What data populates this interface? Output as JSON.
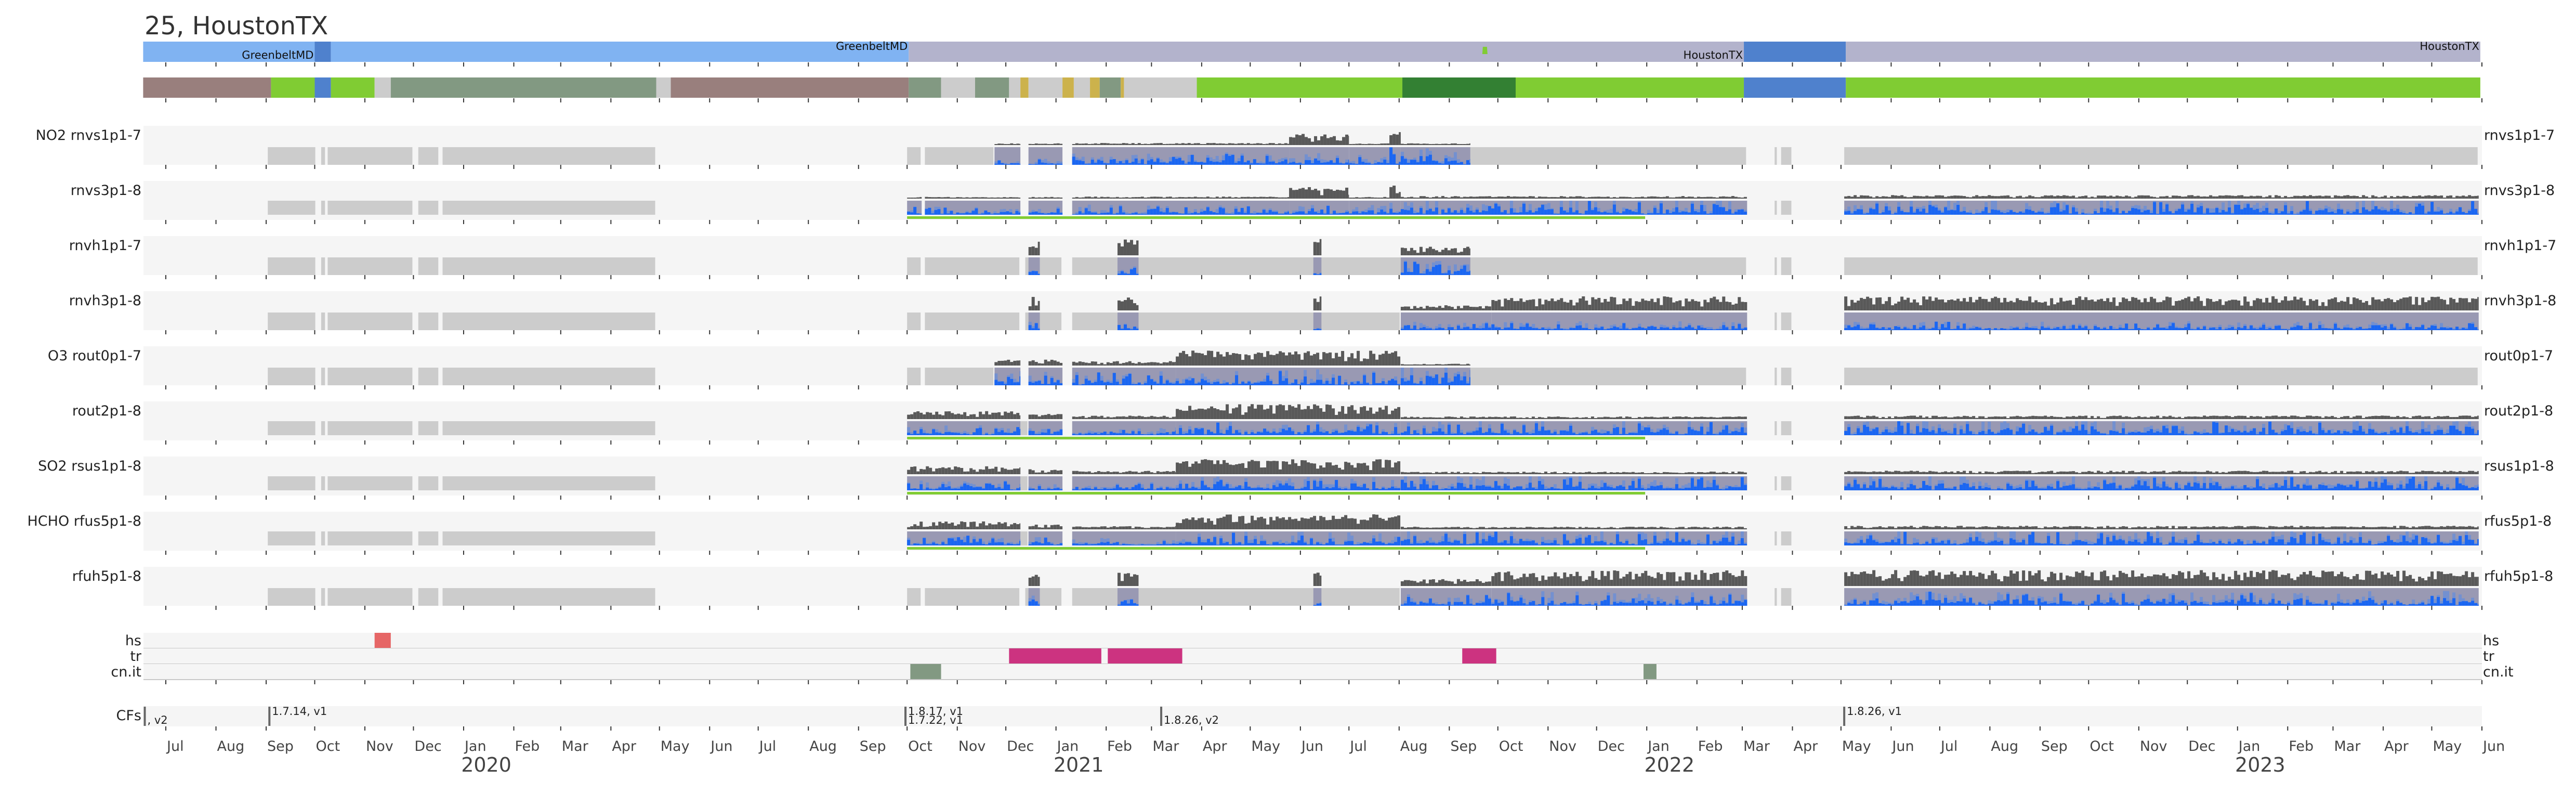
{
  "title": "25, HoustonTX",
  "colors": {
    "light_blue": "#80b3f2",
    "blue": "#4f81cd",
    "lavender": "#b3b3cc",
    "brown": "#997f7d",
    "green": "#80cc33",
    "dark_green": "#338033",
    "sage": "#829982",
    "gray": "#cccccc",
    "gold": "#ccb24c",
    "row_bg": "#f5f5f5",
    "nodata": "#cccccc",
    "data_bg": "#9999b3",
    "data_blue": "#1a66f2",
    "data_blue_light": "#7390d0",
    "data_dark": "#595959",
    "hs": "#e66666",
    "tr": "#cc3380",
    "cnit": "#829982",
    "cf_marker": "#666666"
  },
  "location_bar": {
    "segments": [
      {
        "start": "2019-06-17",
        "end": "2019-10-01",
        "color": "light_blue"
      },
      {
        "start": "2019-10-01",
        "end": "2019-10-11",
        "color": "blue"
      },
      {
        "start": "2019-10-11",
        "end": "2020-10-02",
        "color": "light_blue"
      },
      {
        "start": "2020-10-02",
        "end": "2022-03-02",
        "color": "lavender"
      },
      {
        "start": "2022-03-02",
        "end": "2022-05-04",
        "color": "blue"
      },
      {
        "start": "2022-05-04",
        "end": "2023-05-31",
        "color": "lavender"
      }
    ],
    "labels": [
      {
        "text": "GreenbeltMD",
        "at": "2019-10-01",
        "pos": "low"
      },
      {
        "text": "GreenbeltMD",
        "at": "2020-10-02",
        "pos": "high"
      },
      {
        "text": "HoustonTX",
        "at": "2022-03-02",
        "pos": "low"
      },
      {
        "text": "HoustonTX",
        "at": "2023-05-31",
        "pos": "high"
      }
    ],
    "marker": {
      "at": "2021-09-23",
      "color": "green"
    }
  },
  "status_bar": {
    "segments": [
      {
        "start": "2019-06-17",
        "end": "2019-09-04",
        "color": "brown"
      },
      {
        "start": "2019-09-04",
        "end": "2019-10-01",
        "color": "green"
      },
      {
        "start": "2019-10-01",
        "end": "2019-10-11",
        "color": "blue"
      },
      {
        "start": "2019-10-11",
        "end": "2019-11-07",
        "color": "green"
      },
      {
        "start": "2019-11-07",
        "end": "2019-11-17",
        "color": "gray"
      },
      {
        "start": "2019-11-17",
        "end": "2020-04-29",
        "color": "sage"
      },
      {
        "start": "2020-04-29",
        "end": "2020-05-08",
        "color": "gray"
      },
      {
        "start": "2020-05-08",
        "end": "2020-10-02",
        "color": "brown"
      },
      {
        "start": "2020-10-02",
        "end": "2020-10-22",
        "color": "sage"
      },
      {
        "start": "2020-10-22",
        "end": "2020-11-12",
        "color": "gray"
      },
      {
        "start": "2020-11-12",
        "end": "2020-12-03",
        "color": "sage"
      },
      {
        "start": "2020-12-03",
        "end": "2020-12-10",
        "color": "gray"
      },
      {
        "start": "2020-12-10",
        "end": "2020-12-15",
        "color": "gold"
      },
      {
        "start": "2020-12-15",
        "end": "2021-01-05",
        "color": "gray"
      },
      {
        "start": "2021-01-05",
        "end": "2021-01-12",
        "color": "gold"
      },
      {
        "start": "2021-01-12",
        "end": "2021-01-22",
        "color": "gray"
      },
      {
        "start": "2021-01-22",
        "end": "2021-01-28",
        "color": "gold"
      },
      {
        "start": "2021-01-28",
        "end": "2021-02-10",
        "color": "sage"
      },
      {
        "start": "2021-02-10",
        "end": "2021-02-12",
        "color": "gold"
      },
      {
        "start": "2021-02-12",
        "end": "2021-03-29",
        "color": "gray"
      },
      {
        "start": "2021-03-29",
        "end": "2021-08-03",
        "color": "green"
      },
      {
        "start": "2021-08-03",
        "end": "2021-10-12",
        "color": "dark_green"
      },
      {
        "start": "2021-10-12",
        "end": "2022-03-02",
        "color": "green"
      },
      {
        "start": "2022-03-02",
        "end": "2022-05-04",
        "color": "blue"
      },
      {
        "start": "2022-05-04",
        "end": "2023-05-31",
        "color": "green"
      }
    ]
  },
  "rows": [
    {
      "left_label": "NO2  rnvs1p1-7",
      "right_label": "rnvs1p1-7",
      "green_line": null,
      "nodata": [
        [
          "2019-09-02",
          "2019-10-02"
        ],
        [
          "2019-10-05",
          "2019-10-08"
        ],
        [
          "2019-10-09",
          "2019-12-01"
        ],
        [
          "2019-12-04",
          "2019-12-17"
        ],
        [
          "2019-12-19",
          "2020-04-29"
        ],
        [
          "2020-10-01",
          "2020-10-10"
        ],
        [
          "2020-10-12",
          "2020-11-24"
        ],
        [
          "2021-09-14",
          "2022-03-04"
        ],
        [
          "2022-03-21",
          "2022-03-23"
        ],
        [
          "2022-03-25",
          "2022-04-01"
        ],
        [
          "2022-05-03",
          "2023-05-30"
        ]
      ],
      "data": [
        [
          "2020-11-24",
          "2020-12-10",
          0.1,
          0.3
        ],
        [
          "2020-12-15",
          "2021-01-05",
          0.1,
          0.3
        ],
        [
          "2021-01-11",
          "2021-05-25",
          0.12,
          0.5
        ],
        [
          "2021-05-25",
          "2021-07-01",
          0.65,
          0.6
        ],
        [
          "2021-07-01",
          "2021-07-26",
          0.1,
          0.4
        ],
        [
          "2021-07-26",
          "2021-08-02",
          0.75,
          0.8
        ],
        [
          "2021-08-02",
          "2021-09-14",
          0.1,
          0.7
        ]
      ]
    },
    {
      "left_label": "rnvs3p1-8",
      "right_label": "rnvs3p1-8",
      "green_line": [
        "2020-10-01",
        "2021-12-31"
      ],
      "nodata": [
        [
          "2019-09-02",
          "2019-10-02"
        ],
        [
          "2019-10-05",
          "2019-10-08"
        ],
        [
          "2019-10-09",
          "2019-12-01"
        ],
        [
          "2019-12-04",
          "2019-12-17"
        ],
        [
          "2019-12-19",
          "2020-04-29"
        ],
        [
          "2022-03-21",
          "2022-03-23"
        ],
        [
          "2022-03-25",
          "2022-04-01"
        ]
      ],
      "data": [
        [
          "2020-10-01",
          "2020-10-10",
          0.1,
          0.4
        ],
        [
          "2020-10-12",
          "2020-12-10",
          0.1,
          0.4
        ],
        [
          "2020-12-15",
          "2021-01-05",
          0.1,
          0.4
        ],
        [
          "2021-01-11",
          "2021-05-25",
          0.12,
          0.5
        ],
        [
          "2021-05-25",
          "2021-07-01",
          0.65,
          0.6
        ],
        [
          "2021-07-01",
          "2021-07-26",
          0.1,
          0.5
        ],
        [
          "2021-07-26",
          "2021-08-02",
          0.75,
          0.8
        ],
        [
          "2021-08-02",
          "2022-03-04",
          0.15,
          0.8
        ],
        [
          "2022-05-03",
          "2023-05-30",
          0.2,
          0.8
        ]
      ]
    },
    {
      "left_label": "rnvh1p1-7",
      "right_label": "rnvh1p1-7",
      "green_line": null,
      "nodata": [
        [
          "2019-09-02",
          "2019-10-02"
        ],
        [
          "2019-10-05",
          "2019-10-08"
        ],
        [
          "2019-10-09",
          "2019-12-01"
        ],
        [
          "2019-12-04",
          "2019-12-17"
        ],
        [
          "2019-12-19",
          "2020-04-29"
        ],
        [
          "2020-10-01",
          "2020-10-10"
        ],
        [
          "2020-10-12",
          "2020-12-10"
        ],
        [
          "2020-12-13",
          "2021-01-05"
        ],
        [
          "2021-01-11",
          "2022-03-04"
        ],
        [
          "2022-03-21",
          "2022-03-23"
        ],
        [
          "2022-03-25",
          "2022-04-01"
        ],
        [
          "2022-05-03",
          "2023-05-30"
        ]
      ],
      "data": [
        [
          "2020-12-15",
          "2020-12-22",
          0.85,
          0.4
        ],
        [
          "2021-02-08",
          "2021-02-21",
          0.9,
          0.4
        ],
        [
          "2021-06-09",
          "2021-06-14",
          1.0,
          0.2
        ],
        [
          "2021-08-02",
          "2021-09-14",
          0.5,
          0.6
        ]
      ]
    },
    {
      "left_label": "rnvh3p1-8",
      "right_label": "rnvh3p1-8",
      "green_line": null,
      "nodata": [
        [
          "2019-09-02",
          "2019-10-02"
        ],
        [
          "2019-10-05",
          "2019-10-08"
        ],
        [
          "2019-10-09",
          "2019-12-01"
        ],
        [
          "2019-12-04",
          "2019-12-17"
        ],
        [
          "2019-12-19",
          "2020-04-29"
        ],
        [
          "2020-10-01",
          "2020-10-10"
        ],
        [
          "2020-10-12",
          "2020-12-10"
        ],
        [
          "2020-12-13",
          "2021-01-05"
        ],
        [
          "2021-01-11",
          "2021-08-02"
        ],
        [
          "2022-03-21",
          "2022-03-23"
        ],
        [
          "2022-03-25",
          "2022-04-01"
        ]
      ],
      "data": [
        [
          "2020-12-15",
          "2020-12-22",
          0.85,
          0.4
        ],
        [
          "2021-02-08",
          "2021-02-21",
          0.9,
          0.4
        ],
        [
          "2021-06-09",
          "2021-06-14",
          1.0,
          0.2
        ],
        [
          "2021-08-02",
          "2021-09-27",
          0.3,
          0.35
        ],
        [
          "2021-09-27",
          "2022-03-04",
          0.8,
          0.35
        ],
        [
          "2022-05-03",
          "2023-05-30",
          0.8,
          0.35
        ]
      ]
    },
    {
      "left_label": "O3  rout0p1-7",
      "right_label": "rout0p1-7",
      "green_line": null,
      "nodata": [
        [
          "2019-09-02",
          "2019-10-02"
        ],
        [
          "2019-10-05",
          "2019-10-08"
        ],
        [
          "2019-10-09",
          "2019-12-01"
        ],
        [
          "2019-12-04",
          "2019-12-17"
        ],
        [
          "2019-12-19",
          "2020-04-29"
        ],
        [
          "2020-10-01",
          "2020-10-10"
        ],
        [
          "2020-10-12",
          "2020-11-24"
        ],
        [
          "2021-09-14",
          "2022-03-04"
        ],
        [
          "2022-03-21",
          "2022-03-23"
        ],
        [
          "2022-03-25",
          "2022-04-01"
        ],
        [
          "2022-05-03",
          "2023-05-30"
        ]
      ],
      "data": [
        [
          "2020-11-24",
          "2020-12-10",
          0.35,
          0.6
        ],
        [
          "2020-12-15",
          "2021-01-05",
          0.35,
          0.6
        ],
        [
          "2021-01-11",
          "2021-03-16",
          0.25,
          0.6
        ],
        [
          "2021-03-16",
          "2021-08-02",
          0.85,
          0.7
        ],
        [
          "2021-08-02",
          "2021-09-14",
          0.1,
          0.9
        ]
      ]
    },
    {
      "left_label": "rout2p1-8",
      "right_label": "rout2p1-8",
      "green_line": [
        "2020-10-01",
        "2021-12-31"
      ],
      "nodata": [
        [
          "2019-09-02",
          "2019-10-02"
        ],
        [
          "2019-10-05",
          "2019-10-08"
        ],
        [
          "2019-10-09",
          "2019-12-01"
        ],
        [
          "2019-12-04",
          "2019-12-17"
        ],
        [
          "2019-12-19",
          "2020-04-29"
        ],
        [
          "2020-12-10",
          "2020-12-15"
        ],
        [
          "2022-03-21",
          "2022-03-23"
        ],
        [
          "2022-03-25",
          "2022-04-01"
        ]
      ],
      "data": [
        [
          "2020-10-01",
          "2020-12-10",
          0.45,
          0.5
        ],
        [
          "2020-12-15",
          "2021-01-05",
          0.3,
          0.4
        ],
        [
          "2021-01-11",
          "2021-03-16",
          0.2,
          0.4
        ],
        [
          "2021-03-16",
          "2021-08-02",
          0.85,
          0.7
        ],
        [
          "2021-08-02",
          "2022-03-04",
          0.15,
          0.8
        ],
        [
          "2022-05-03",
          "2023-05-30",
          0.2,
          0.8
        ]
      ]
    },
    {
      "left_label": "SO2  rsus1p1-8",
      "right_label": "rsus1p1-8",
      "green_line": [
        "2020-10-01",
        "2021-12-31"
      ],
      "nodata": [
        [
          "2019-09-02",
          "2019-10-02"
        ],
        [
          "2019-10-05",
          "2019-10-08"
        ],
        [
          "2019-10-09",
          "2019-12-01"
        ],
        [
          "2019-12-04",
          "2019-12-17"
        ],
        [
          "2019-12-19",
          "2020-04-29"
        ],
        [
          "2020-12-10",
          "2020-12-15"
        ],
        [
          "2022-03-21",
          "2022-03-23"
        ],
        [
          "2022-03-25",
          "2022-04-01"
        ]
      ],
      "data": [
        [
          "2020-10-01",
          "2020-12-10",
          0.45,
          0.5
        ],
        [
          "2020-12-15",
          "2021-01-05",
          0.3,
          0.4
        ],
        [
          "2021-01-11",
          "2021-03-16",
          0.2,
          0.4
        ],
        [
          "2021-03-16",
          "2021-08-02",
          0.85,
          0.7
        ],
        [
          "2021-08-02",
          "2022-03-04",
          0.15,
          0.8
        ],
        [
          "2022-05-03",
          "2023-05-30",
          0.2,
          0.8
        ]
      ]
    },
    {
      "left_label": "HCHO  rfus5p1-8",
      "right_label": "rfus5p1-8",
      "green_line": [
        "2020-10-01",
        "2021-12-31"
      ],
      "nodata": [
        [
          "2019-09-02",
          "2019-10-02"
        ],
        [
          "2019-10-05",
          "2019-10-08"
        ],
        [
          "2019-10-09",
          "2019-12-01"
        ],
        [
          "2019-12-04",
          "2019-12-17"
        ],
        [
          "2019-12-19",
          "2020-04-29"
        ],
        [
          "2020-12-10",
          "2020-12-15"
        ],
        [
          "2022-03-21",
          "2022-03-23"
        ],
        [
          "2022-03-25",
          "2022-04-01"
        ]
      ],
      "data": [
        [
          "2020-10-01",
          "2020-12-10",
          0.45,
          0.5
        ],
        [
          "2020-12-15",
          "2021-01-05",
          0.3,
          0.4
        ],
        [
          "2021-01-11",
          "2021-03-16",
          0.2,
          0.4
        ],
        [
          "2021-03-16",
          "2021-08-02",
          0.85,
          0.7
        ],
        [
          "2021-08-02",
          "2022-03-04",
          0.15,
          0.8
        ],
        [
          "2022-05-03",
          "2023-05-30",
          0.2,
          0.8
        ]
      ]
    },
    {
      "left_label": "rfuh5p1-8",
      "right_label": "rfuh5p1-8",
      "green_line": null,
      "nodata": [
        [
          "2019-09-02",
          "2019-10-02"
        ],
        [
          "2019-10-05",
          "2019-10-08"
        ],
        [
          "2019-10-09",
          "2019-12-01"
        ],
        [
          "2019-12-04",
          "2019-12-17"
        ],
        [
          "2019-12-19",
          "2020-04-29"
        ],
        [
          "2020-10-01",
          "2020-10-10"
        ],
        [
          "2020-10-12",
          "2020-12-10"
        ],
        [
          "2020-12-13",
          "2021-01-05"
        ],
        [
          "2021-01-11",
          "2021-08-02"
        ],
        [
          "2022-03-21",
          "2022-03-23"
        ],
        [
          "2022-03-25",
          "2022-04-01"
        ]
      ],
      "data": [
        [
          "2020-12-15",
          "2020-12-22",
          0.85,
          0.4
        ],
        [
          "2021-02-08",
          "2021-02-21",
          0.9,
          0.4
        ],
        [
          "2021-06-09",
          "2021-06-14",
          1.0,
          0.2
        ],
        [
          "2021-08-02",
          "2021-09-27",
          0.4,
          0.5
        ],
        [
          "2021-09-27",
          "2022-03-04",
          0.9,
          0.6
        ],
        [
          "2022-05-03",
          "2023-05-30",
          0.9,
          0.6
        ]
      ]
    }
  ],
  "flags": {
    "rows": [
      {
        "label": "hs",
        "color": "hs",
        "spans": [
          [
            "2019-11-07",
            "2019-11-17"
          ]
        ]
      },
      {
        "label": "tr",
        "color": "tr",
        "spans": [
          [
            "2020-12-03",
            "2021-01-29"
          ],
          [
            "2021-02-02",
            "2021-03-20"
          ],
          [
            "2021-09-09",
            "2021-09-30"
          ]
        ]
      },
      {
        "label": "cn.it",
        "color": "cnit",
        "spans": [
          [
            "2020-10-03",
            "2020-10-22"
          ],
          [
            "2021-12-30",
            "2022-01-07"
          ]
        ]
      }
    ]
  },
  "cfs": {
    "label": "CFs",
    "markers": [
      {
        "at": "2019-06-18",
        "text": ", v2",
        "pos": "low"
      },
      {
        "at": "2019-09-03",
        "text": "1.7.14, v1",
        "pos": "high"
      },
      {
        "at": "2020-09-30",
        "text": "1.8.17, v1",
        "pos": "high"
      },
      {
        "at": "2020-09-30",
        "text": "1.7.22, v1",
        "pos": "low"
      },
      {
        "at": "2021-03-07",
        "text": "1.8.26, v2",
        "pos": "low"
      },
      {
        "at": "2022-05-03",
        "text": "1.8.26, v1",
        "pos": "high"
      }
    ]
  },
  "axis": {
    "months": [
      "Jul",
      "Aug",
      "Sep",
      "Oct",
      "Nov",
      "Dec",
      "Jan",
      "Feb",
      "Mar",
      "Apr",
      "May",
      "Jun",
      "Jul",
      "Aug",
      "Sep",
      "Oct",
      "Nov",
      "Dec",
      "Jan",
      "Feb",
      "Mar",
      "Apr",
      "May",
      "Jun",
      "Jul",
      "Aug",
      "Sep",
      "Oct",
      "Nov",
      "Dec",
      "Jan",
      "Feb",
      "Mar",
      "Apr",
      "May",
      "Jun",
      "Jul",
      "Aug",
      "Sep",
      "Oct",
      "Nov",
      "Dec",
      "Jan",
      "Feb",
      "Mar",
      "Apr",
      "May",
      "Jun"
    ],
    "years": [
      {
        "label": "2020",
        "at": "2020-01-15"
      },
      {
        "label": "2021",
        "at": "2021-01-15"
      },
      {
        "label": "2022",
        "at": "2022-01-15"
      },
      {
        "label": "2023",
        "at": "2023-01-15"
      }
    ],
    "start_month": "2019-07-01"
  }
}
